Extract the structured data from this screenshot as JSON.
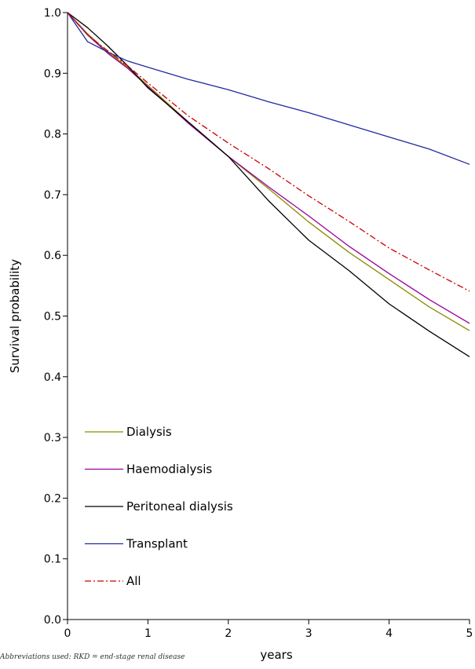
{
  "chart_data": {
    "type": "line",
    "title": "",
    "xlabel": "years",
    "ylabel": "Survival probability",
    "xlim": [
      0,
      5
    ],
    "ylim": [
      0,
      1
    ],
    "x_ticks": [
      "0",
      "1",
      "2",
      "3",
      "4",
      "5"
    ],
    "y_ticks": [
      "0.0",
      "0.1",
      "0.2",
      "0.3",
      "0.4",
      "0.5",
      "0.6",
      "0.7",
      "0.8",
      "0.9",
      "1.0"
    ],
    "grid": false,
    "legend_position": "lower-left",
    "series": [
      {
        "name": "Dialysis",
        "color": "#8b8b00",
        "dash": "solid",
        "x": [
          0,
          0.25,
          0.5,
          0.75,
          1,
          1.5,
          2,
          2.5,
          3,
          3.5,
          4,
          4.5,
          5
        ],
        "y": [
          1.0,
          0.965,
          0.935,
          0.91,
          0.88,
          0.82,
          0.763,
          0.71,
          0.655,
          0.605,
          0.56,
          0.515,
          0.476
        ]
      },
      {
        "name": "Haemodialysis",
        "color": "#990099",
        "dash": "solid",
        "x": [
          0,
          0.25,
          0.5,
          0.75,
          1,
          1.5,
          2,
          2.5,
          3,
          3.5,
          4,
          4.5,
          5
        ],
        "y": [
          1.0,
          0.963,
          0.933,
          0.908,
          0.878,
          0.818,
          0.763,
          0.713,
          0.665,
          0.615,
          0.57,
          0.527,
          0.488
        ]
      },
      {
        "name": "Peritoneal dialysis",
        "color": "#000000",
        "dash": "solid",
        "x": [
          0,
          0.25,
          0.5,
          0.75,
          1,
          1.5,
          2,
          2.5,
          3,
          3.5,
          4,
          4.5,
          5
        ],
        "y": [
          1.0,
          0.975,
          0.945,
          0.912,
          0.876,
          0.82,
          0.763,
          0.69,
          0.625,
          0.575,
          0.52,
          0.475,
          0.433
        ]
      },
      {
        "name": "Transplant",
        "color": "#1f2aa0",
        "dash": "solid",
        "x": [
          0,
          0.25,
          0.5,
          0.75,
          1,
          1.5,
          2,
          2.5,
          3,
          3.5,
          4,
          4.5,
          5
        ],
        "y": [
          1.0,
          0.952,
          0.935,
          0.92,
          0.91,
          0.89,
          0.873,
          0.853,
          0.835,
          0.815,
          0.795,
          0.775,
          0.75
        ]
      },
      {
        "name": "All",
        "color": "#cc0000",
        "dash": "dashdot",
        "x": [
          0,
          0.25,
          0.5,
          0.75,
          1,
          1.5,
          2,
          2.5,
          3,
          3.5,
          4,
          4.5,
          5
        ],
        "y": [
          1.0,
          0.963,
          0.937,
          0.912,
          0.884,
          0.83,
          0.785,
          0.743,
          0.698,
          0.656,
          0.612,
          0.576,
          0.541
        ]
      }
    ]
  },
  "footnote": "Abbreviations used: RKD = end-stage renal disease"
}
